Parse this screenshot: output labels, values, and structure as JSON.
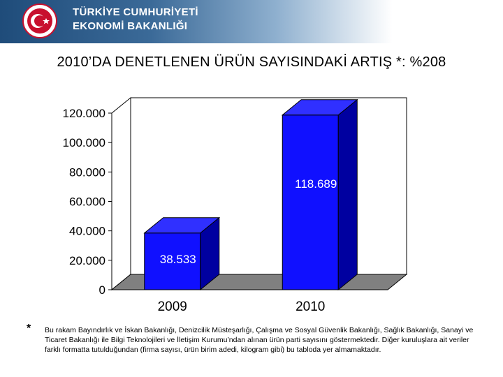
{
  "header": {
    "ministry_line1": "TÜRKİYE CUMHURİYETİ",
    "ministry_line2": "EKONOMİ BAKANLIĞI"
  },
  "title": "2010’DA DENETLENEN ÜRÜN SAYISINDAKİ ARTIŞ *: %208",
  "colors": {
    "bar": "#1010ff",
    "bar_side": "#0000a0",
    "bar_top": "#3030ff",
    "floor": "#808080",
    "wall": "#ffffff"
  },
  "chart_data": {
    "type": "bar",
    "categories": [
      "2009",
      "2010"
    ],
    "values": [
      38533,
      118689
    ],
    "value_labels": [
      "38.533",
      "118.689"
    ],
    "ylim": [
      0,
      120000
    ],
    "yticks": [
      0,
      20000,
      40000,
      60000,
      80000,
      100000,
      120000
    ],
    "ytick_labels": [
      "0",
      "20.000",
      "40.000",
      "60.000",
      "80.000",
      "100.000",
      "120.000"
    ],
    "grid": false,
    "style": "3d"
  },
  "footnote": {
    "marker": "*",
    "text": "Bu rakam Bayındırlık ve İskan Bakanlığı, Denizcilik Müsteşarlığı, Çalışma ve Sosyal Güvenlik Bakanlığı, Sağlık Bakanlığı, Sanayi ve Ticaret Bakanlığı ile Bilgi Teknolojileri ve İletişim Kurumu’ndan alınan ürün parti sayısını göstermektedir. Diğer kuruluşlara ait veriler farklı formatta tutulduğundan (firma sayısı, ürün birim adedi, kilogram gibi) bu tabloda yer almamaktadır."
  }
}
